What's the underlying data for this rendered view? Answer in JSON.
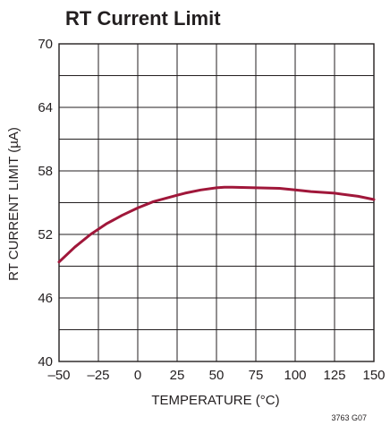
{
  "chart_data": {
    "type": "line",
    "title": "RT Current Limit",
    "xlabel": "TEMPERATURE (°C)",
    "ylabel": "RT CURRENT LIMIT (µA)",
    "xlim": [
      -50,
      150
    ],
    "ylim": [
      40,
      70
    ],
    "xticks": [
      "–50",
      "–25",
      "0",
      "25",
      "50",
      "75",
      "100",
      "125",
      "150"
    ],
    "xtick_values": [
      -50,
      -25,
      0,
      25,
      50,
      75,
      100,
      125,
      150
    ],
    "yticks": [
      "40",
      "46",
      "52",
      "58",
      "64",
      "70"
    ],
    "ytick_values": [
      40,
      46,
      52,
      58,
      64,
      70
    ],
    "grid": true,
    "series": [
      {
        "color": "#a0173a",
        "x": [
          -50,
          -40,
          -30,
          -25,
          -20,
          -10,
          0,
          10,
          20,
          25,
          30,
          40,
          50,
          55,
          60,
          75,
          90,
          100,
          110,
          125,
          140,
          150
        ],
        "y": [
          49.4,
          50.8,
          52.0,
          52.5,
          53.0,
          53.8,
          54.5,
          55.1,
          55.5,
          55.7,
          55.9,
          56.2,
          56.4,
          56.45,
          56.45,
          56.4,
          56.35,
          56.2,
          56.05,
          55.9,
          55.6,
          55.3
        ]
      }
    ],
    "figure_id": "3763 G07"
  }
}
